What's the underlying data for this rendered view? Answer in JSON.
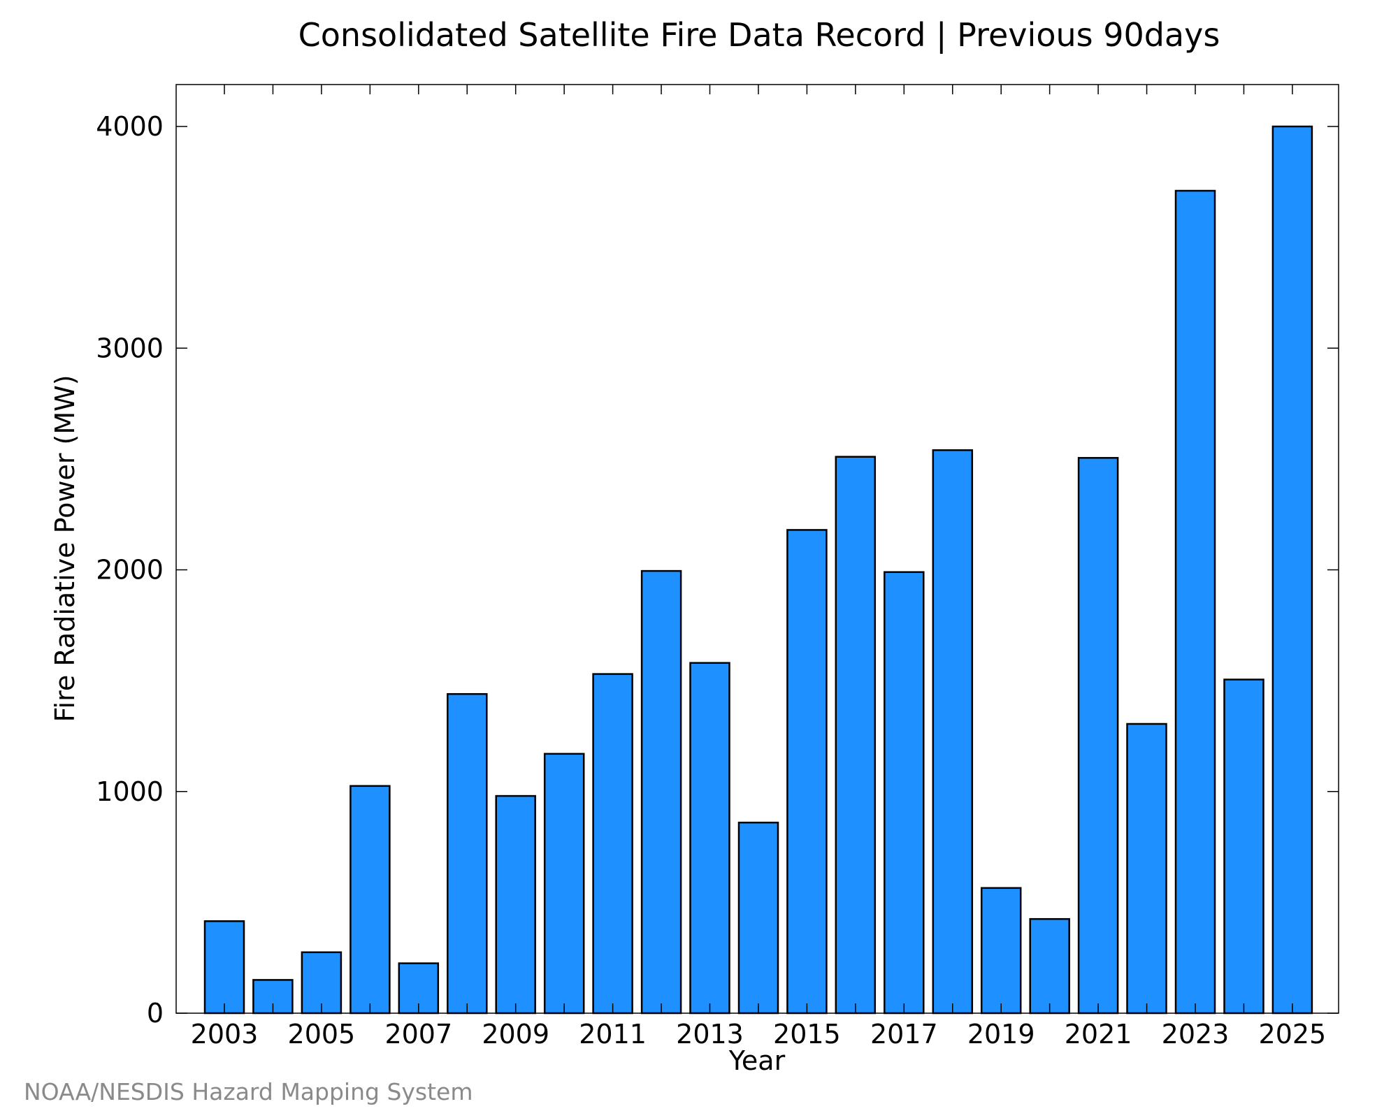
{
  "chart_data": {
    "type": "bar",
    "title": "Consolidated Satellite Fire Data Record | Previous 90days",
    "xlabel": "Year",
    "ylabel": "Fire Radiative Power (MW)",
    "categories": [
      "2003",
      "2004",
      "2005",
      "2006",
      "2007",
      "2008",
      "2009",
      "2010",
      "2011",
      "2012",
      "2013",
      "2014",
      "2015",
      "2016",
      "2017",
      "2018",
      "2019",
      "2020",
      "2021",
      "2022",
      "2023",
      "2024",
      "2025"
    ],
    "x_tick_labels": [
      "2003",
      "2005",
      "2007",
      "2009",
      "2011",
      "2013",
      "2015",
      "2017",
      "2019",
      "2021",
      "2023",
      "2025"
    ],
    "values": [
      415,
      150,
      275,
      1025,
      225,
      1440,
      980,
      1170,
      1530,
      1995,
      1580,
      860,
      2180,
      2510,
      1990,
      2540,
      565,
      425,
      2505,
      1305,
      3710,
      1505,
      4000
    ],
    "ylim": [
      0,
      4200
    ],
    "y_ticks": [
      0,
      1000,
      2000,
      3000,
      4000
    ],
    "grid": false,
    "bar_color": "#1e90ff",
    "bar_edge_color": "#000000"
  },
  "credit": "NOAA/NESDIS Hazard Mapping System"
}
